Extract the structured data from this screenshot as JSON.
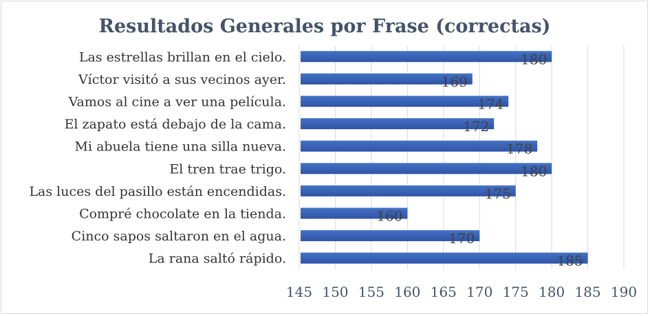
{
  "chart_data": {
    "type": "bar",
    "orientation": "horizontal",
    "title": "Resultados Generales por Frase (correctas)",
    "xlabel": "",
    "ylabel": "",
    "categories": [
      "Las estrellas brillan en el cielo.",
      "Víctor visitó a sus vecinos ayer.",
      "Vamos al cine a ver una película.",
      "El zapato está debajo de la cama.",
      "Mi abuela tiene una silla nueva.",
      "El tren trae trigo.",
      "Las luces del pasillo están encendidas.",
      "Compré chocolate en la tienda.",
      "Cinco sapos saltaron en el agua.",
      "La rana saltó rápido."
    ],
    "values": [
      180,
      169,
      174,
      172,
      178,
      180,
      175,
      160,
      170,
      185
    ],
    "xlim": [
      145,
      190
    ],
    "ticks": [
      145,
      150,
      155,
      160,
      165,
      170,
      175,
      180,
      185,
      190
    ],
    "grid": true,
    "legend": "none",
    "data_labels": true,
    "colors": {
      "bar_top": "#4472c4",
      "bar_bottom": "#2f54a6",
      "gridline": "#d9d9d9",
      "title": "#44546a"
    }
  }
}
